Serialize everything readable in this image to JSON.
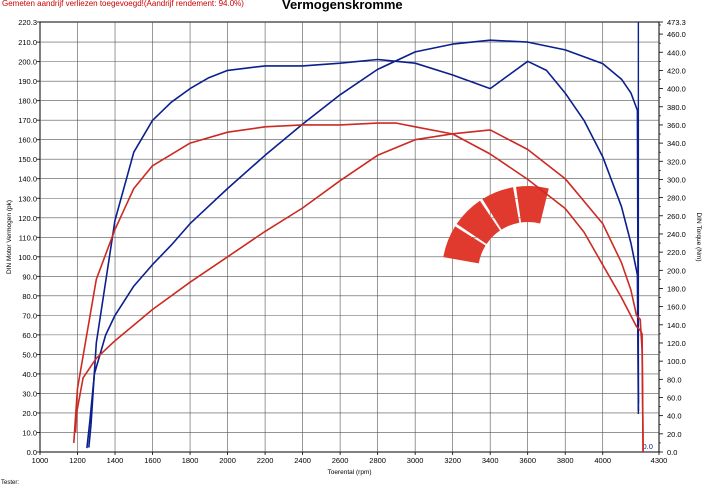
{
  "header": {
    "note": "Gemeten aandrijf verliezen toegevoegd!(Aandrijf rendement: 94.0%)",
    "title": "Vermogenskromme"
  },
  "footer": {
    "text": "Tester:"
  },
  "colors": {
    "blue": "#0b1f8e",
    "red": "#cc2a22",
    "grid": "#444444",
    "logo": "#e03a2e"
  },
  "chart_data": {
    "type": "line",
    "title": "Vermogenskromme",
    "xlabel": "Toerental (rpm)",
    "ylabel": "DIN Motor Vermogen (pk)",
    "y2label": "DIN Torque (Nm)",
    "xlim": [
      1000,
      4300
    ],
    "ylim": [
      0,
      220.3
    ],
    "y2lim": [
      0,
      473.3
    ],
    "x_ticks": [
      "1000",
      "1200",
      "1400",
      "1600",
      "1800",
      "2000",
      "2200",
      "2400",
      "2600",
      "2800",
      "3000",
      "3200",
      "3400",
      "3600",
      "3800",
      "4000",
      "4300"
    ],
    "y_ticks": [
      "0.0",
      "10.0",
      "20.0",
      "30.0",
      "40.0",
      "50.0",
      "60.0",
      "70.0",
      "80.0",
      "90.0",
      "100.0",
      "110.0",
      "120.0",
      "130.0",
      "140.0",
      "150.0",
      "160.0",
      "170.0",
      "180.0",
      "190.0",
      "200.0",
      "210.0",
      "220.3"
    ],
    "y2_ticks": [
      "0.0",
      "20.0",
      "40.0",
      "60.0",
      "80.0",
      "100.0",
      "120.0",
      "140.0",
      "160.0",
      "180.0",
      "200.0",
      "220.0",
      "240.0",
      "260.0",
      "280.0",
      "300.0",
      "320.0",
      "340.0",
      "360.0",
      "380.0",
      "400.0",
      "420.0",
      "440.0",
      "460.0",
      "473.3"
    ],
    "x_end_label": "0.0",
    "series": [
      {
        "color": "#0b1f8e",
        "axis": "left",
        "x": [
          1250,
          1265,
          1290,
          1350,
          1400,
          1500,
          1600,
          1700,
          1800,
          1900,
          2000,
          2200,
          2400,
          2600,
          2800,
          3000,
          3200,
          3400,
          3600,
          3800,
          4000,
          4100,
          4150,
          4185,
          4190
        ],
        "y": [
          2,
          15,
          40,
          60,
          70,
          85,
          96,
          106,
          117,
          126,
          135,
          152,
          168,
          183,
          196,
          205,
          209,
          211,
          210,
          206,
          199,
          191,
          184,
          175,
          25
        ]
      },
      {
        "color": "#0b1f8e",
        "axis": "right",
        "x": [
          1260,
          1272,
          1300,
          1400,
          1500,
          1600,
          1700,
          1800,
          1900,
          2000,
          2200,
          2400,
          2600,
          2800,
          3000,
          3200,
          3400,
          3500,
          3600,
          3700,
          3800,
          3900,
          4000,
          4100,
          4150,
          4185,
          4190
        ],
        "y": [
          5,
          30,
          120,
          255,
          330,
          365,
          385,
          400,
          412,
          420,
          425,
          425,
          428,
          432,
          428,
          415,
          400,
          415,
          430,
          420,
          395,
          365,
          325,
          270,
          230,
          195,
          45
        ]
      },
      {
        "color": "#cc2a22",
        "axis": "left",
        "x": [
          1190,
          1195,
          1230,
          1300,
          1400,
          1500,
          1600,
          1800,
          2000,
          2200,
          2400,
          2600,
          2800,
          3000,
          3200,
          3400,
          3600,
          3800,
          4000,
          4100,
          4150,
          4180,
          4200,
          4210,
          4215
        ],
        "y": [
          10,
          20,
          38,
          48,
          57,
          65,
          73,
          87,
          100,
          113,
          125,
          139,
          152,
          160,
          163,
          165,
          155,
          140,
          117,
          97,
          83,
          70,
          68,
          52,
          0
        ]
      },
      {
        "color": "#cc2a22",
        "axis": "right",
        "x": [
          1180,
          1188,
          1200,
          1300,
          1400,
          1500,
          1600,
          1800,
          2000,
          2200,
          2400,
          2600,
          2800,
          2900,
          3000,
          3200,
          3400,
          3600,
          3800,
          3900,
          4000,
          4100,
          4150,
          4180,
          4200,
          4210,
          4215
        ],
        "y": [
          10,
          35,
          70,
          190,
          245,
          290,
          315,
          340,
          352,
          358,
          360,
          360,
          362,
          362,
          358,
          350,
          328,
          300,
          268,
          242,
          206,
          170,
          150,
          138,
          134,
          130,
          0
        ]
      }
    ]
  }
}
